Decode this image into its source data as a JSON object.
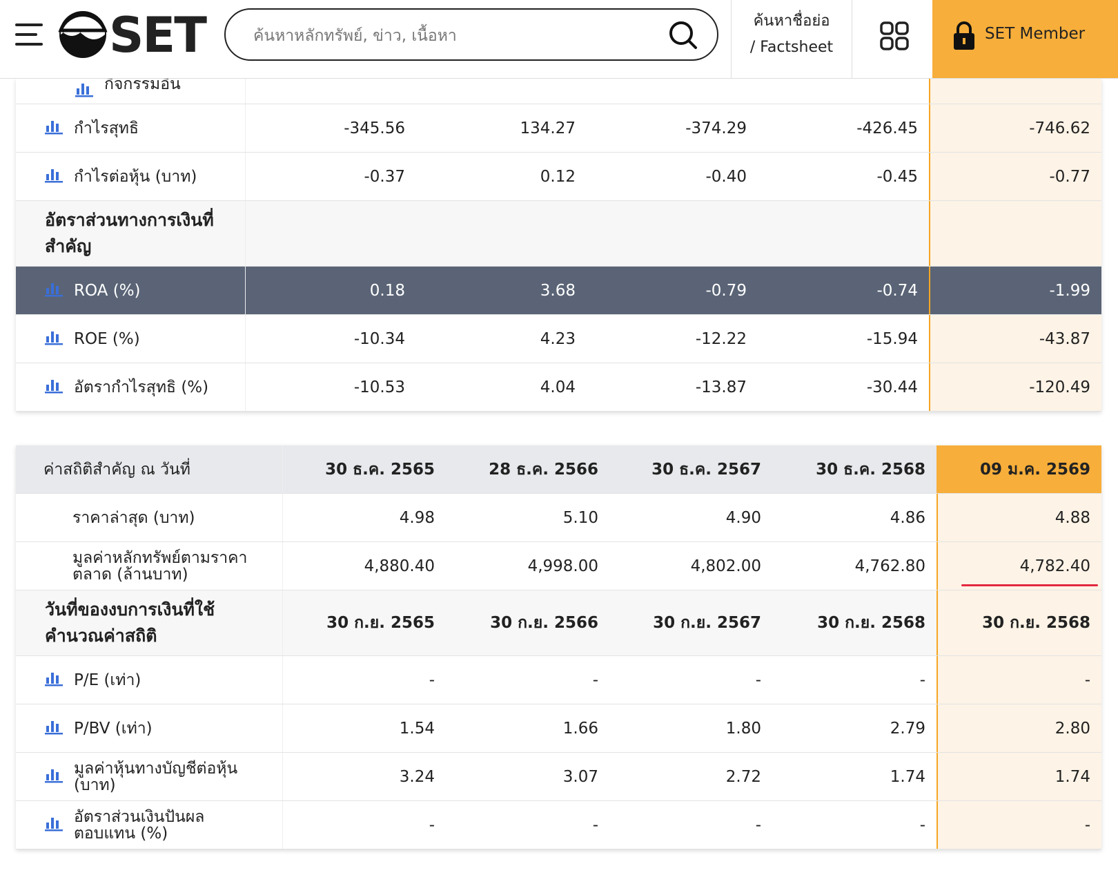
{
  "header": {
    "logo": "SET",
    "search_placeholder": "ค้นหาหลักทรัพย์, ข่าว, เนื้อหา",
    "lookup": [
      "ค้นหาชื่อย่อ",
      "/ Factsheet"
    ],
    "member": "SET Member"
  },
  "table1": {
    "rows": [
      {
        "label": "กิจกรรมอื่น",
        "partial": true
      },
      {
        "label": "กำไรสุทธิ",
        "values": [
          "-345.56",
          "134.27",
          "-374.29",
          "-426.45",
          "-746.62"
        ]
      },
      {
        "label": "กำไรต่อหุ้น (บาท)",
        "values": [
          "-0.37",
          "0.12",
          "-0.40",
          "-0.45",
          "-0.77"
        ]
      },
      {
        "label": "อัตราส่วนทางการเงินที่สำคัญ",
        "section": true
      },
      {
        "label": "ROA (%)",
        "values": [
          "0.18",
          "3.68",
          "-0.79",
          "-0.74",
          "-1.99"
        ],
        "selected": true
      },
      {
        "label": "ROE (%)",
        "values": [
          "-10.34",
          "4.23",
          "-12.22",
          "-15.94",
          "-43.87"
        ]
      },
      {
        "label": "อัตรากำไรสุทธิ (%)",
        "values": [
          "-10.53",
          "4.04",
          "-13.87",
          "-30.44",
          "-120.49"
        ]
      }
    ]
  },
  "table2": {
    "header": {
      "label": "ค่าสถิติสำคัญ ณ วันที่",
      "dates": [
        "30 ธ.ค. 2565",
        "28 ธ.ค. 2566",
        "30 ธ.ค. 2567",
        "30 ธ.ค. 2568",
        "09 ม.ค. 2569"
      ]
    },
    "rows": [
      {
        "label": "ราคาล่าสุด (บาท)",
        "values": [
          "4.98",
          "5.10",
          "4.90",
          "4.86",
          "4.88"
        ],
        "indent": true
      },
      {
        "label": "มูลค่าหลักทรัพย์ตามราคาตลาด (ล้านบาท)",
        "values": [
          "4,880.40",
          "4,998.00",
          "4,802.00",
          "4,762.80",
          "4,782.40"
        ],
        "indent": true
      },
      {
        "label": "วันที่ของงบการเงินที่ใช้คำนวณค่าสถิติ",
        "values": [
          "30 ก.ย. 2565",
          "30 ก.ย. 2566",
          "30 ก.ย. 2567",
          "30 ก.ย. 2568",
          "30 ก.ย. 2568"
        ],
        "section": true
      },
      {
        "label": "P/E (เท่า)",
        "values": [
          "-",
          "-",
          "-",
          "-",
          "-"
        ]
      },
      {
        "label": "P/BV (เท่า)",
        "values": [
          "1.54",
          "1.66",
          "1.80",
          "2.79",
          "2.80"
        ]
      },
      {
        "label": "มูลค่าหุ้นทางบัญชีต่อหุ้น (บาท)",
        "values": [
          "3.24",
          "3.07",
          "2.72",
          "1.74",
          "1.74"
        ]
      },
      {
        "label": "อัตราส่วนเงินปันผลตอบแทน (%)",
        "values": [
          "-",
          "-",
          "-",
          "-",
          "-"
        ]
      }
    ]
  }
}
